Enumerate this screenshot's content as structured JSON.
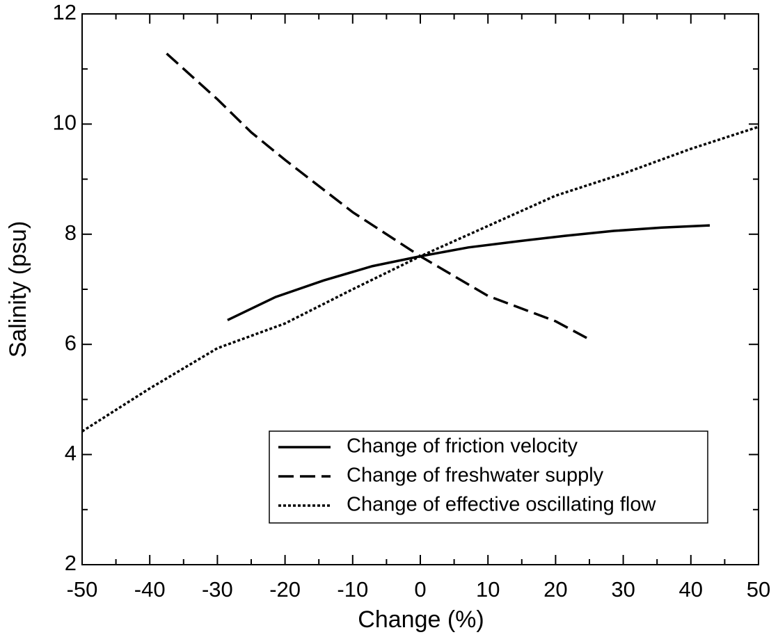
{
  "chart_data": {
    "type": "line",
    "x_label": "Change (%)",
    "y_label": "Salinity (psu)",
    "xlim": [
      -50,
      50
    ],
    "xticks": [
      -50,
      -40,
      -30,
      -20,
      -10,
      0,
      10,
      20,
      30,
      40,
      50
    ],
    "ylim": [
      2,
      12
    ],
    "yticks": [
      2,
      4,
      6,
      8,
      10,
      12
    ],
    "legend": "lower right",
    "series": [
      {
        "name": "Change of friction velocity",
        "color": "#000000",
        "dash": "solid",
        "x": [
          -28.5,
          -21.4,
          -14.3,
          -7.1,
          0,
          7.1,
          14.3,
          21.4,
          28.6,
          35.7,
          42.8
        ],
        "values": [
          6.44,
          6.86,
          7.16,
          7.42,
          7.6,
          7.76,
          7.87,
          7.97,
          8.06,
          8.12,
          8.16
        ]
      },
      {
        "name": "Change of freshwater supply",
        "color": "#000000",
        "dash": "dashed",
        "x": [
          -37.5,
          -30,
          -25,
          -20,
          -10,
          0,
          10,
          20,
          25
        ],
        "values": [
          11.28,
          10.45,
          9.85,
          9.35,
          8.4,
          7.6,
          6.88,
          6.42,
          6.09
        ]
      },
      {
        "name": "Change of effective oscillating flow",
        "color": "#000000",
        "dash": "dotted",
        "x": [
          -50,
          -40,
          -30,
          -20,
          -10,
          0,
          10,
          20,
          30,
          40,
          50
        ],
        "values": [
          4.42,
          5.2,
          5.93,
          6.38,
          7.0,
          7.6,
          8.15,
          8.7,
          9.1,
          9.55,
          9.95
        ]
      }
    ]
  }
}
